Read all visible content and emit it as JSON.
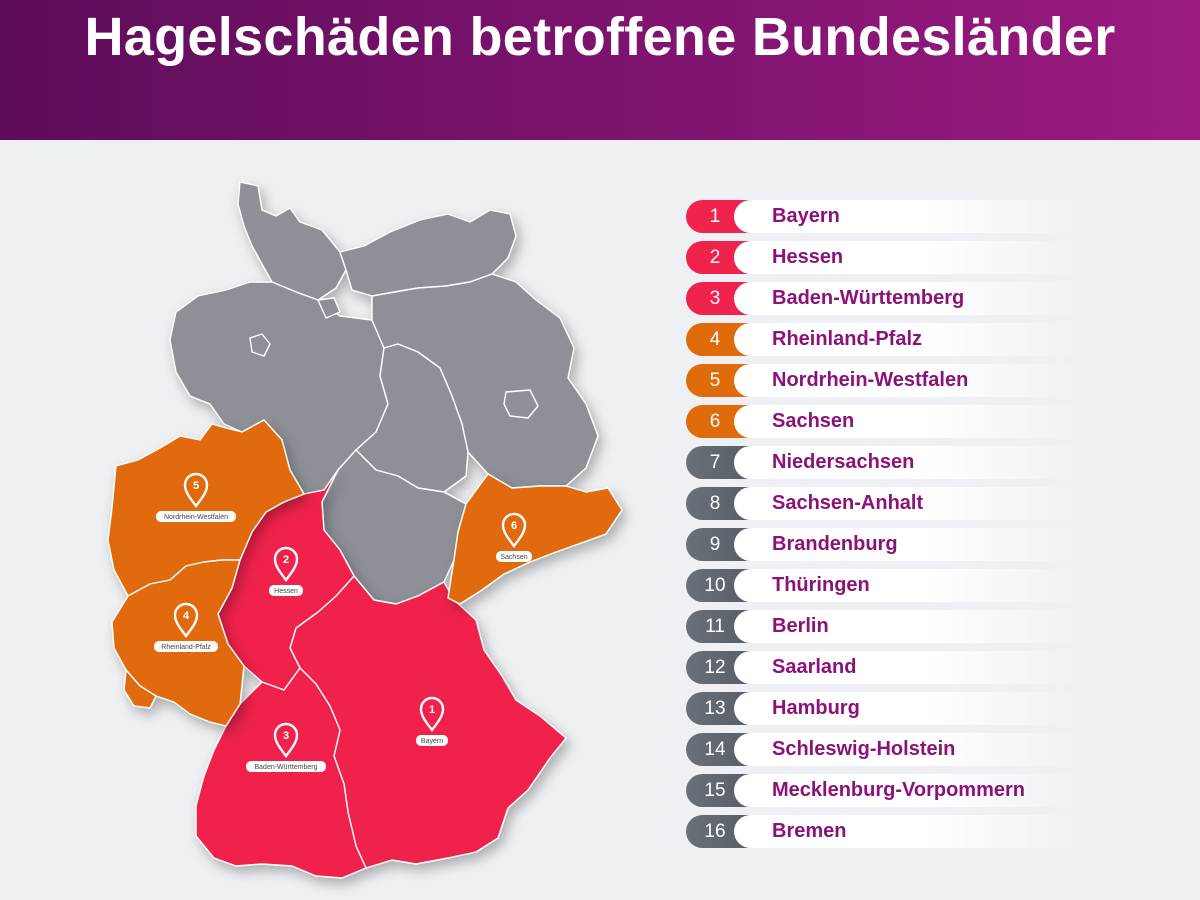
{
  "header": {
    "title": "Hagelschäden betroffene Bundesländer"
  },
  "colors": {
    "header_start": "#5e0c5a",
    "header_end": "#9a1a80",
    "tier_high": "#f0234c",
    "tier_mid": "#e06b0a",
    "tier_low": "#5a6068",
    "state_unranked": "#8d9197",
    "name_text": "#8b1279"
  },
  "map": {
    "pins": [
      {
        "number": "1",
        "label": "Bayern"
      },
      {
        "number": "2",
        "label": "Hessen"
      },
      {
        "number": "3",
        "label": "Baden-Württemberg"
      },
      {
        "number": "4",
        "label": "Rheinland-Pfalz"
      },
      {
        "number": "5",
        "label": "Nordrhein-Westfalen"
      },
      {
        "number": "6",
        "label": "Sachsen"
      }
    ]
  },
  "ranking": [
    {
      "rank": "1",
      "name": "Bayern",
      "tier": "high"
    },
    {
      "rank": "2",
      "name": "Hessen",
      "tier": "high"
    },
    {
      "rank": "3",
      "name": "Baden-Württemberg",
      "tier": "high"
    },
    {
      "rank": "4",
      "name": "Rheinland-Pfalz",
      "tier": "mid"
    },
    {
      "rank": "5",
      "name": "Nordrhein-Westfalen",
      "tier": "mid"
    },
    {
      "rank": "6",
      "name": "Sachsen",
      "tier": "mid"
    },
    {
      "rank": "7",
      "name": "Niedersachsen",
      "tier": "low"
    },
    {
      "rank": "8",
      "name": "Sachsen-Anhalt",
      "tier": "low"
    },
    {
      "rank": "9",
      "name": "Brandenburg",
      "tier": "low"
    },
    {
      "rank": "10",
      "name": "Thüringen",
      "tier": "low"
    },
    {
      "rank": "11",
      "name": "Berlin",
      "tier": "low"
    },
    {
      "rank": "12",
      "name": "Saarland",
      "tier": "low"
    },
    {
      "rank": "13",
      "name": "Hamburg",
      "tier": "low"
    },
    {
      "rank": "14",
      "name": "Schleswig-Holstein",
      "tier": "low"
    },
    {
      "rank": "15",
      "name": "Mecklenburg-Vorpommern",
      "tier": "low"
    },
    {
      "rank": "16",
      "name": "Bremen",
      "tier": "low"
    }
  ]
}
